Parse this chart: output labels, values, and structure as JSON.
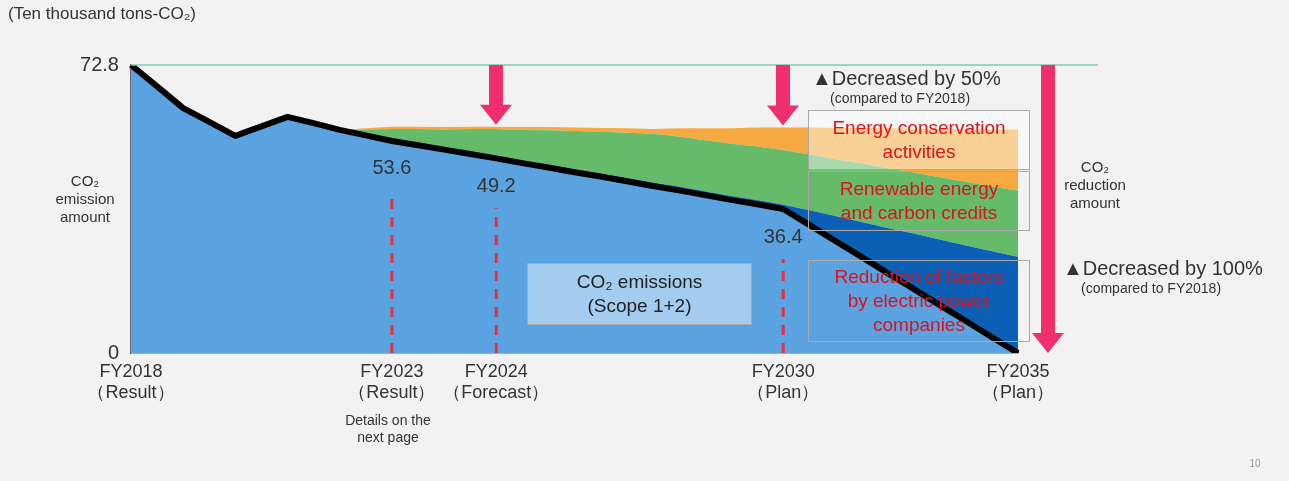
{
  "chart_data": {
    "type": "area",
    "stacked": true,
    "ylabel": "(Ten thousand tons-CO₂)",
    "categories": [
      "FY2018\n（Result）",
      null,
      null,
      null,
      null,
      null,
      null,
      null,
      null,
      null,
      "FY2023\n（Result）",
      null,
      null,
      null,
      "FY2024\n（Forecast）",
      null,
      null,
      null,
      null,
      null,
      null,
      null,
      null,
      null,
      null,
      "FY2030\n（Plan）",
      null,
      null,
      null,
      null,
      null,
      null,
      null,
      null,
      "FY2035\n（Plan）"
    ],
    "series": [
      {
        "name": "CO₂ emissions\n(Scope 1+2)",
        "color": "#5aa3e0",
        "values": [
          72.8,
          67.4,
          61.9,
          58.4,
          54.9,
          57.3,
          59.7,
          58.1,
          56.4,
          55.0,
          53.6,
          52.5,
          51.4,
          50.3,
          49.2,
          48.0,
          46.9,
          45.7,
          44.6,
          43.4,
          42.2,
          41.1,
          39.9,
          38.7,
          37.6,
          36.4,
          32.4,
          28.3,
          24.3,
          20.2,
          16.2,
          12.1,
          8.1,
          4.0,
          0
        ],
        "value_labels": [
          null,
          null,
          null,
          null,
          null,
          null,
          null,
          null,
          null,
          null,
          "53.6",
          null,
          null,
          null,
          "49.2",
          null,
          null,
          null,
          null,
          null,
          null,
          null,
          null,
          null,
          null,
          "36.4",
          null,
          null,
          null,
          null,
          null,
          null,
          null,
          null,
          null
        ]
      },
      {
        "name": "Reduction of factors\nby electric power\ncompanies",
        "color": "#0b5fb4",
        "values": [
          null,
          null,
          null,
          null,
          null,
          null,
          null,
          null,
          0,
          0,
          0,
          0.1,
          0.2,
          0.4,
          0.5,
          0.6,
          0.7,
          0.8,
          0.8,
          0.9,
          0.9,
          1.0,
          1.0,
          1.0,
          1.1,
          1.1,
          3.7,
          6.3,
          8.8,
          11.4,
          14.0,
          16.6,
          19.1,
          21.7,
          24.3
        ]
      },
      {
        "name": "Renewable energy\nand carbon credits",
        "color": "#66bb6a",
        "values": [
          null,
          null,
          null,
          null,
          null,
          null,
          null,
          null,
          0,
          1.5,
          3.0,
          4.0,
          4.9,
          5.9,
          6.9,
          7.8,
          8.7,
          9.6,
          10.5,
          11.4,
          12.3,
          12.6,
          12.9,
          13.2,
          13.5,
          13.8,
          14.1,
          14.4,
          14.8,
          15.1,
          15.4,
          15.7,
          16.1,
          16.4,
          16.7
        ]
      },
      {
        "name": "Energy conservation\nactivities",
        "color": "#f5a940",
        "values": [
          null,
          null,
          null,
          null,
          null,
          null,
          null,
          null,
          0,
          0.3,
          0.6,
          0.6,
          0.6,
          0.6,
          0.6,
          0.7,
          0.8,
          0.9,
          1.0,
          1.1,
          1.2,
          2.1,
          3.0,
          3.9,
          4.8,
          5.7,
          6.8,
          7.9,
          9.0,
          10.1,
          11.1,
          12.2,
          13.3,
          14.4,
          15.5
        ]
      }
    ],
    "ylim": [
      0,
      72.8
    ],
    "yticks": [
      0,
      72.8
    ],
    "grid": false,
    "legend": false,
    "ref_lines": [
      {
        "axis": "y",
        "value": 72.8,
        "color": "#7fc8b0",
        "line_style": "solid"
      },
      {
        "axis": "x",
        "value": "FY2023\n（Result）",
        "color": "#e8303a",
        "line_style": "dashed"
      },
      {
        "axis": "x",
        "value": "FY2024\n（Forecast）",
        "color": "#e8303a",
        "line_style": "dashed"
      },
      {
        "axis": "x",
        "value": "FY2030\n（Plan）",
        "color": "#e8303a",
        "line_style": "dashed"
      }
    ],
    "annotations": [
      "CO₂\nemission\namount",
      "▲Decreased by 50%\n(compared to FY2018)",
      "CO₂\nreduction\namount",
      "▲Decreased by 100%\n(compared to FY2018)",
      "Details on the\nnext page",
      "10"
    ]
  }
}
